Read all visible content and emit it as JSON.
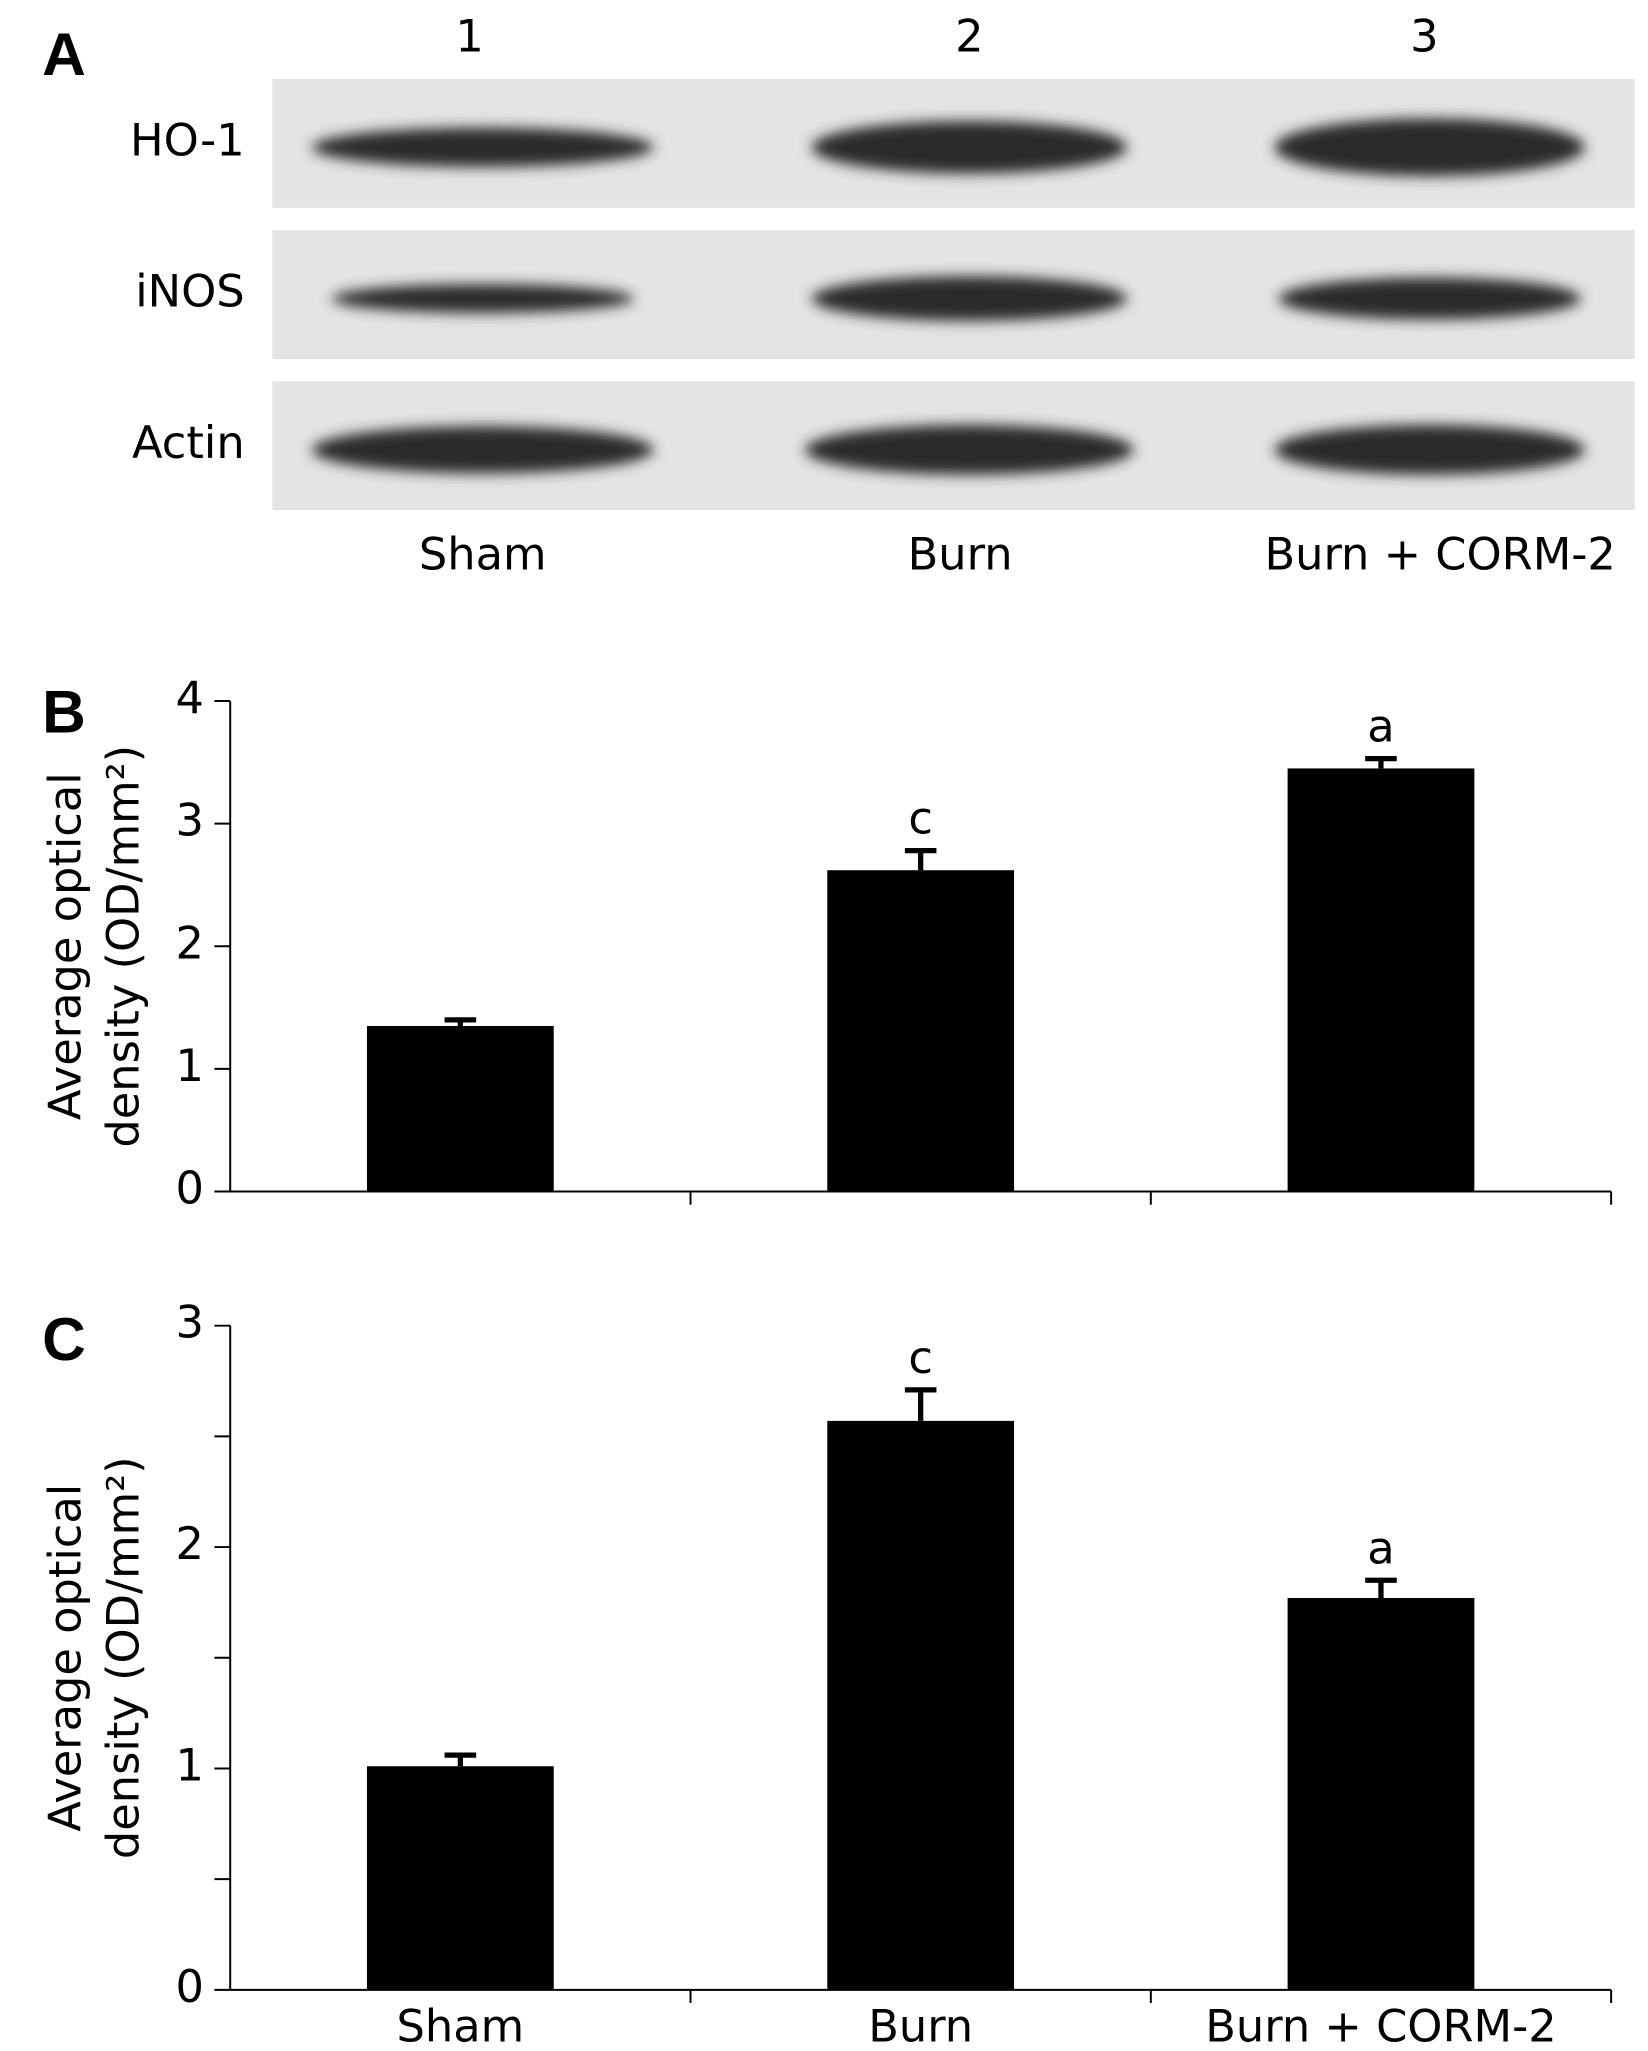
{
  "blot": {
    "label": "A",
    "lanes": [
      "1",
      "2",
      "3"
    ],
    "rows": [
      "HO-1",
      "iNOS",
      "Actin"
    ],
    "groups": [
      "Sham",
      "Burn",
      "Burn + CORM-2"
    ]
  },
  "chart_data": [
    {
      "type": "bar",
      "label": "B",
      "ylabel": [
        "Average optical",
        "density (OD/mm²)"
      ],
      "categories": [
        null,
        null,
        null
      ],
      "values": [
        1.35,
        2.62,
        3.45
      ],
      "errors": [
        0.05,
        0.16,
        0.08
      ],
      "value_annotations": [
        null,
        "c",
        "a"
      ],
      "color": "#000000",
      "ylim": [
        0,
        4
      ],
      "yticks": [
        0,
        1,
        2,
        3,
        4
      ]
    },
    {
      "type": "bar",
      "label": "C",
      "ylabel": [
        "Average optical",
        "density (OD/mm²)"
      ],
      "categories": [
        "Sham",
        "Burn",
        "Burn + CORM-2"
      ],
      "values": [
        1.01,
        2.57,
        1.77
      ],
      "errors": [
        0.05,
        0.14,
        0.08
      ],
      "value_annotations": [
        null,
        "c",
        "a"
      ],
      "color": "#000000",
      "ylim": [
        0,
        3
      ],
      "yticks": [
        0,
        1,
        2,
        3
      ],
      "minor_yticks": [
        0.5,
        1.5,
        2.5
      ]
    }
  ]
}
